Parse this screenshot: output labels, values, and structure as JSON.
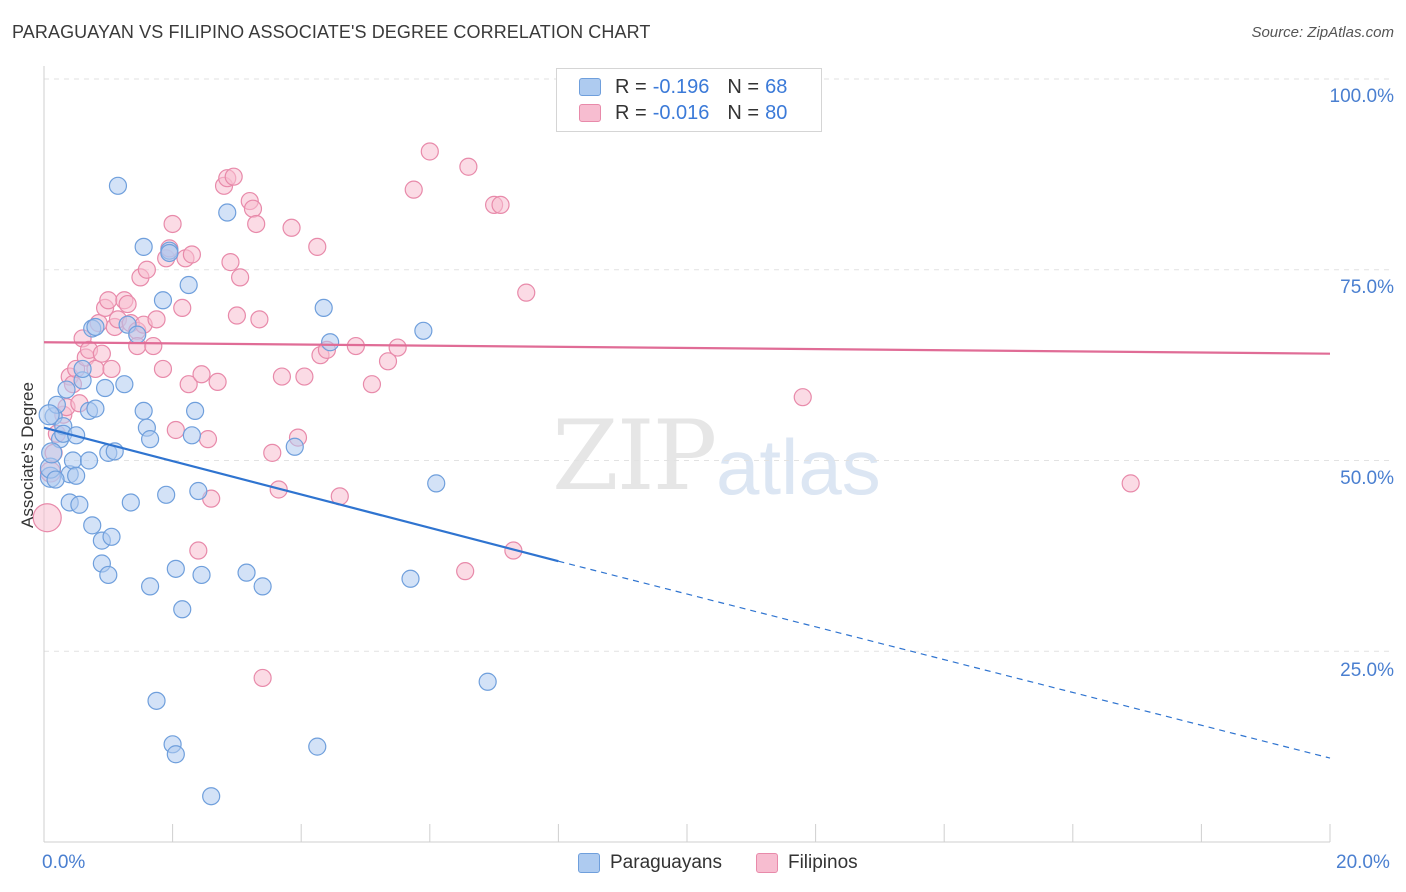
{
  "title": "PARAGUAYAN VS FILIPINO ASSOCIATE'S DEGREE CORRELATION CHART",
  "source": "Source: ZipAtlas.com",
  "watermark": {
    "zip": "ZIP",
    "atlas": "atlas"
  },
  "colors": {
    "blue_fill": "#aecbf0",
    "blue_stroke": "#6f9fdc",
    "blue_line": "#2f74d0",
    "pink_fill": "#f7bdd0",
    "pink_stroke": "#e88aaa",
    "pink_line": "#e06c96",
    "grid": "#e2e2e2",
    "tick_text": "#4a7fd0"
  },
  "legend": {
    "series": [
      {
        "r_label": "R =",
        "r_value": "-0.196",
        "n_label": "N =",
        "n_value": "68"
      },
      {
        "r_label": "R =",
        "r_value": "-0.016",
        "n_label": "N =",
        "n_value": "80"
      }
    ]
  },
  "bottom_legend": {
    "paraguayans": "Paraguayans",
    "filipinos": "Filipinos"
  },
  "chart_data": {
    "type": "scatter",
    "title": "PARAGUAYAN VS FILIPINO ASSOCIATE'S DEGREE CORRELATION CHART",
    "xlabel": "",
    "ylabel": "Associate's Degree",
    "xlim": [
      0,
      20
    ],
    "ylim": [
      0,
      100
    ],
    "x_tick_labels": {
      "left": "0.0%",
      "right": "20.0%"
    },
    "y_tick_labels": [
      "100.0%",
      "75.0%",
      "50.0%",
      "25.0%"
    ],
    "y_tick_values": [
      100,
      75,
      50,
      25
    ],
    "series": [
      {
        "name": "Paraguayans",
        "r": -0.196,
        "n": 68,
        "trend": {
          "x0": 0,
          "y0": 54.3,
          "x1": 8.0,
          "y1": 36.8,
          "x_dash_end": 20.0,
          "y_dash_end": 11.0
        },
        "points": [
          [
            0.1,
            47.8
          ],
          [
            0.1,
            49.0
          ],
          [
            0.15,
            55.8
          ],
          [
            0.2,
            57.3
          ],
          [
            0.25,
            52.8
          ],
          [
            0.3,
            54.5
          ],
          [
            0.3,
            53.5
          ],
          [
            0.35,
            59.3
          ],
          [
            0.4,
            48.2
          ],
          [
            0.4,
            44.5
          ],
          [
            0.45,
            50.0
          ],
          [
            0.5,
            53.3
          ],
          [
            0.5,
            48.0
          ],
          [
            0.55,
            44.2
          ],
          [
            0.6,
            60.5
          ],
          [
            0.6,
            62.0
          ],
          [
            0.7,
            50.0
          ],
          [
            0.7,
            56.5
          ],
          [
            0.75,
            67.3
          ],
          [
            0.75,
            41.5
          ],
          [
            0.8,
            56.8
          ],
          [
            0.8,
            67.5
          ],
          [
            0.9,
            36.5
          ],
          [
            0.9,
            39.5
          ],
          [
            0.95,
            59.5
          ],
          [
            1.0,
            35.0
          ],
          [
            1.0,
            51.0
          ],
          [
            1.05,
            40.0
          ],
          [
            1.1,
            51.2
          ],
          [
            1.15,
            86.0
          ],
          [
            1.25,
            60.0
          ],
          [
            1.3,
            67.8
          ],
          [
            1.35,
            44.5
          ],
          [
            1.45,
            66.5
          ],
          [
            1.55,
            56.5
          ],
          [
            1.55,
            78.0
          ],
          [
            1.6,
            54.3
          ],
          [
            1.65,
            33.5
          ],
          [
            1.65,
            52.8
          ],
          [
            1.75,
            18.5
          ],
          [
            1.85,
            71.0
          ],
          [
            1.9,
            45.5
          ],
          [
            1.95,
            77.5
          ],
          [
            1.95,
            77.2
          ],
          [
            2.0,
            12.8
          ],
          [
            2.05,
            11.5
          ],
          [
            2.05,
            35.8
          ],
          [
            2.15,
            30.5
          ],
          [
            2.25,
            73.0
          ],
          [
            2.3,
            53.3
          ],
          [
            2.35,
            56.5
          ],
          [
            2.4,
            46.0
          ],
          [
            2.45,
            35.0
          ],
          [
            2.6,
            6.0
          ],
          [
            2.85,
            82.5
          ],
          [
            3.15,
            35.3
          ],
          [
            3.4,
            33.5
          ],
          [
            3.9,
            51.8
          ],
          [
            4.25,
            12.5
          ],
          [
            4.35,
            70.0
          ],
          [
            4.45,
            65.5
          ],
          [
            5.7,
            34.5
          ],
          [
            5.9,
            67.0
          ],
          [
            6.1,
            47.0
          ],
          [
            6.9,
            21.0
          ],
          [
            0.08,
            56.0
          ],
          [
            0.12,
            51.0
          ],
          [
            0.18,
            47.5
          ]
        ]
      },
      {
        "name": "Filipinos",
        "r": -0.016,
        "n": 80,
        "trend": {
          "x0": 0,
          "y0": 65.5,
          "x1": 20.0,
          "y1": 64.0
        },
        "points": [
          [
            0.05,
            42.5
          ],
          [
            0.1,
            48.5
          ],
          [
            0.15,
            51.0
          ],
          [
            0.2,
            53.5
          ],
          [
            0.3,
            56.0
          ],
          [
            0.35,
            57.0
          ],
          [
            0.4,
            61.0
          ],
          [
            0.45,
            60.0
          ],
          [
            0.5,
            62.0
          ],
          [
            0.55,
            57.5
          ],
          [
            0.6,
            66.0
          ],
          [
            0.65,
            63.5
          ],
          [
            0.7,
            64.5
          ],
          [
            0.8,
            62.0
          ],
          [
            0.85,
            68.0
          ],
          [
            0.9,
            64.0
          ],
          [
            0.95,
            70.0
          ],
          [
            1.0,
            71.0
          ],
          [
            1.05,
            62.0
          ],
          [
            1.1,
            67.5
          ],
          [
            1.15,
            68.5
          ],
          [
            1.25,
            71.0
          ],
          [
            1.3,
            70.5
          ],
          [
            1.35,
            68.0
          ],
          [
            1.45,
            67.0
          ],
          [
            1.45,
            65.0
          ],
          [
            1.5,
            74.0
          ],
          [
            1.55,
            67.8
          ],
          [
            1.6,
            75.0
          ],
          [
            1.7,
            65.0
          ],
          [
            1.75,
            68.5
          ],
          [
            1.85,
            62.0
          ],
          [
            1.9,
            76.5
          ],
          [
            1.95,
            77.8
          ],
          [
            2.0,
            81.0
          ],
          [
            2.05,
            54.0
          ],
          [
            2.15,
            70.0
          ],
          [
            2.2,
            76.5
          ],
          [
            2.25,
            60.0
          ],
          [
            2.3,
            77.0
          ],
          [
            2.4,
            38.2
          ],
          [
            2.45,
            61.3
          ],
          [
            2.55,
            52.8
          ],
          [
            2.6,
            45.0
          ],
          [
            2.7,
            60.3
          ],
          [
            2.8,
            86.0
          ],
          [
            2.85,
            87.0
          ],
          [
            2.9,
            76.0
          ],
          [
            2.95,
            87.2
          ],
          [
            3.0,
            69.0
          ],
          [
            3.05,
            74.0
          ],
          [
            3.2,
            84.0
          ],
          [
            3.25,
            83.0
          ],
          [
            3.3,
            81.0
          ],
          [
            3.35,
            68.5
          ],
          [
            3.4,
            21.5
          ],
          [
            3.55,
            51.0
          ],
          [
            3.65,
            46.2
          ],
          [
            3.7,
            61.0
          ],
          [
            3.85,
            80.5
          ],
          [
            3.95,
            53.0
          ],
          [
            4.05,
            61.0
          ],
          [
            4.25,
            78.0
          ],
          [
            4.3,
            63.8
          ],
          [
            4.4,
            64.5
          ],
          [
            4.6,
            45.3
          ],
          [
            4.85,
            65.0
          ],
          [
            5.1,
            60.0
          ],
          [
            5.35,
            63.0
          ],
          [
            5.5,
            64.8
          ],
          [
            5.75,
            85.5
          ],
          [
            6.0,
            90.5
          ],
          [
            6.55,
            35.5
          ],
          [
            6.6,
            88.5
          ],
          [
            7.0,
            83.5
          ],
          [
            7.1,
            83.5
          ],
          [
            7.3,
            38.2
          ],
          [
            7.5,
            72.0
          ],
          [
            11.8,
            58.3
          ],
          [
            16.9,
            47.0
          ]
        ]
      }
    ]
  }
}
